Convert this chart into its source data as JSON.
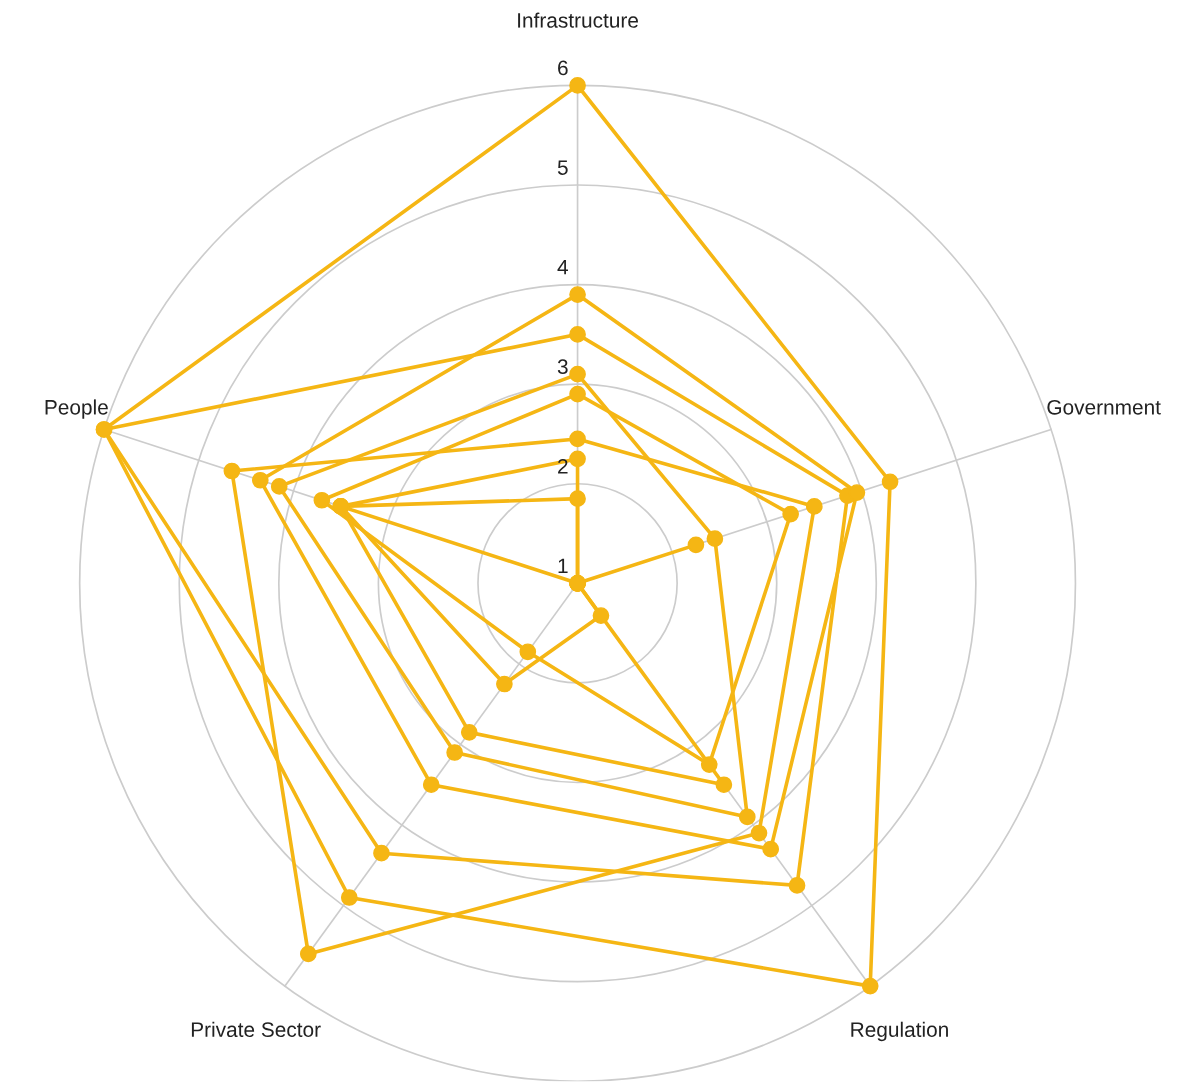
{
  "chart_data": {
    "type": "radar",
    "categories": [
      "Infrastructure",
      "Government",
      "Regulation",
      "Private Sector",
      "People"
    ],
    "ylim": [
      1,
      6
    ],
    "yticks": [
      1,
      2,
      3,
      4,
      5,
      6
    ],
    "grid": true,
    "marker": "circle",
    "line_style": "solid",
    "series": [
      {
        "color": "#f5b614",
        "values": [
          6.0,
          4.3,
          6.0,
          4.9,
          6.0
        ]
      },
      {
        "color": "#f5b614",
        "values": [
          3.5,
          3.85,
          4.75,
          4.35,
          6.0
        ]
      },
      {
        "color": "#f5b614",
        "values": [
          2.45,
          3.5,
          4.1,
          5.6,
          4.65
        ]
      },
      {
        "color": "#f5b614",
        "values": [
          3.9,
          3.95,
          4.3,
          3.5,
          4.35
        ]
      },
      {
        "color": "#f5b614",
        "values": [
          2.9,
          3.25,
          3.25,
          1.85,
          3.7
        ]
      },
      {
        "color": "#f5b614",
        "values": [
          3.1,
          2.45,
          3.9,
          3.1,
          4.15
        ]
      },
      {
        "color": "#f5b614",
        "values": [
          2.25,
          1.0,
          3.5,
          2.85,
          3.5
        ]
      },
      {
        "color": "#f5b614",
        "values": [
          1.85,
          1.0,
          1.4,
          2.25,
          3.5
        ]
      },
      {
        "color": "#f5b614",
        "values": [
          1.0,
          2.25,
          1.0,
          1.0,
          3.5
        ]
      }
    ]
  }
}
